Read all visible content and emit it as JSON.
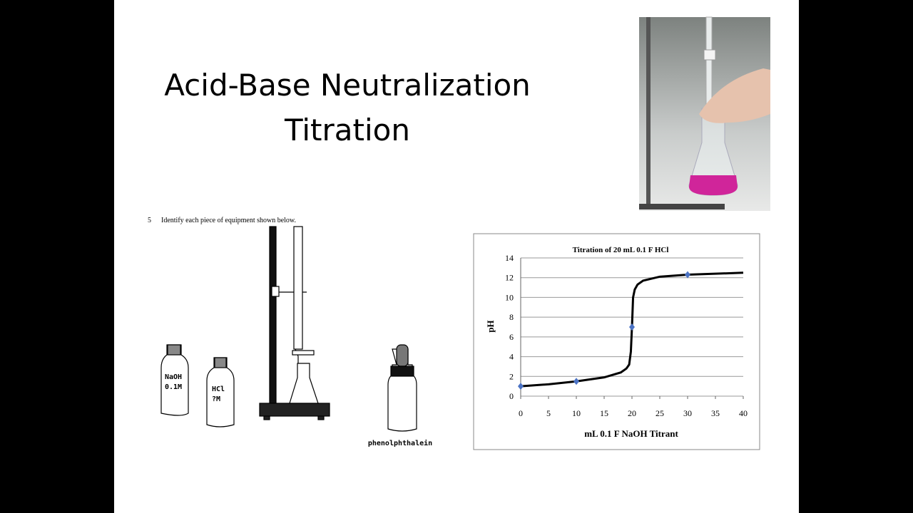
{
  "slide": {
    "title": [
      "Acid-Base Neutralization",
      "Titration"
    ],
    "worksheet": {
      "number": "5",
      "prompt": "Identify each piece of equipment shown below."
    },
    "bottles": [
      {
        "label": [
          "NaOH",
          "0.1M"
        ]
      },
      {
        "label": [
          "HCl",
          "?M"
        ]
      }
    ],
    "dropper_label": "phenolphthalein"
  },
  "chart_data": {
    "type": "line",
    "title": "Titration of 20 mL 0.1 F HCl",
    "x_label": "mL 0.1 F NaOH Titrant",
    "y_label": "pH",
    "xlim": [
      0,
      40
    ],
    "xticks": [
      0,
      5,
      10,
      15,
      20,
      25,
      30,
      35,
      40
    ],
    "ylim": [
      0,
      14
    ],
    "yticks": [
      0,
      2,
      4,
      6,
      8,
      10,
      12,
      14
    ],
    "grid": true,
    "series": [
      {
        "color": "#000000",
        "x": [
          0,
          5,
          10,
          15,
          18,
          19,
          19.5,
          19.8,
          20,
          20.2,
          20.5,
          21,
          22,
          25,
          30,
          35,
          40
        ],
        "values": [
          1.0,
          1.2,
          1.5,
          1.9,
          2.4,
          2.8,
          3.2,
          4.5,
          7,
          10,
          10.8,
          11.3,
          11.7,
          12.1,
          12.3,
          12.4,
          12.5
        ]
      },
      {
        "color": "#4a72c4",
        "marker": "diamond",
        "x": [
          0,
          10,
          20,
          30
        ],
        "values": [
          1.0,
          1.5,
          7.0,
          12.3
        ]
      }
    ]
  }
}
